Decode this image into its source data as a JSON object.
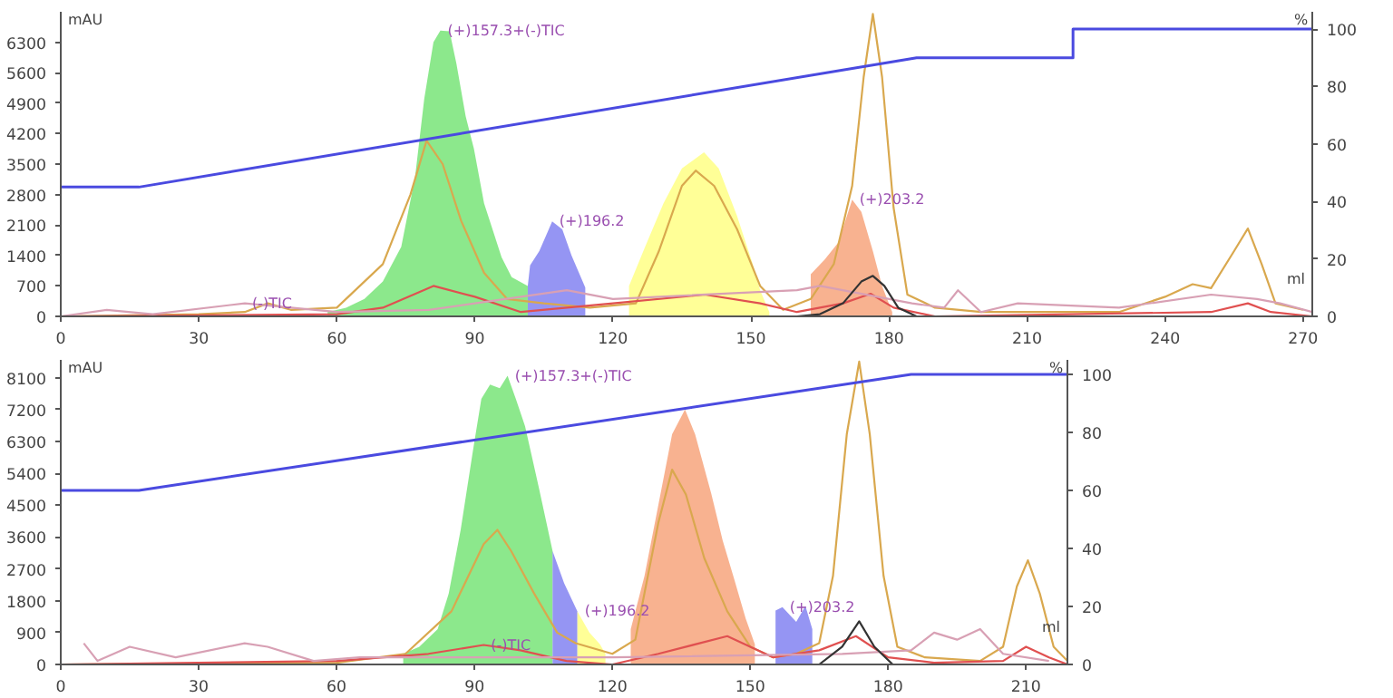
{
  "chart_data": [
    {
      "type": "line",
      "xlabel": "ml",
      "ylabel": "mAU",
      "y2label": "%",
      "xlim": [
        0,
        272
      ],
      "xticks": [
        0,
        30,
        60,
        90,
        120,
        150,
        180,
        210,
        240,
        270
      ],
      "ylim": [
        0,
        7000
      ],
      "yticks": [
        0,
        700,
        1400,
        2100,
        2800,
        3500,
        4200,
        4900,
        5600,
        6300
      ],
      "y2lim": [
        0,
        106
      ],
      "y2ticks": [
        0,
        20,
        40,
        60,
        80,
        100
      ],
      "annotations": [
        {
          "text": "(+)157.3+(-)TIC",
          "x": 82.5,
          "y": 6570
        },
        {
          "text": "(-)TIC",
          "x": 40,
          "y": 300
        },
        {
          "text": "(+)196.2",
          "x": 106.8,
          "y": 2180
        },
        {
          "text": "(+)203.2",
          "x": 172,
          "y": 2680
        }
      ],
      "series": [
        {
          "type": "area",
          "color": "#80e680",
          "x": [
            58,
            62,
            66,
            70,
            74,
            77,
            79,
            81,
            82.5,
            84.5,
            86,
            88,
            89.8,
            92,
            95.8,
            98,
            101.5
          ],
          "values": [
            100,
            200,
            400,
            800,
            1600,
            3200,
            5000,
            6300,
            6570,
            6550,
            5800,
            4600,
            3850,
            2600,
            1360,
            900,
            700
          ]
        },
        {
          "type": "area",
          "color": "#8a8af2",
          "x": [
            101.5,
            102,
            104,
            106.8,
            109,
            111,
            114
          ],
          "values": [
            700,
            1170,
            1500,
            2180,
            2000,
            1400,
            660
          ]
        },
        {
          "type": "area",
          "color": "#ffff8c",
          "x": [
            123.5,
            127,
            131,
            135,
            139.8,
            143,
            147,
            150.4,
            152,
            154
          ],
          "values": [
            700,
            1600,
            2600,
            3400,
            3770,
            3400,
            2300,
            1200,
            600,
            100
          ]
        },
        {
          "type": "area",
          "color": "#f7aa84",
          "x": [
            163,
            166,
            169,
            172,
            174,
            176.5,
            178.5,
            180.7
          ],
          "values": [
            970,
            1300,
            1700,
            2680,
            2400,
            1500,
            700,
            100
          ]
        },
        {
          "color": "#d9a84e",
          "x": [
            0,
            30,
            40,
            45,
            50,
            60,
            70,
            76,
            79.5,
            83,
            87,
            92,
            97,
            105,
            115,
            125,
            130,
            135,
            138,
            142,
            147,
            152,
            157,
            163,
            168,
            172,
            174.5,
            176.5,
            178.5,
            181,
            184,
            190,
            200,
            210,
            230,
            240,
            246,
            250,
            255,
            258,
            261,
            264,
            270
          ],
          "values": [
            0,
            50,
            100,
            300,
            150,
            200,
            1200,
            2800,
            4040,
            3500,
            2200,
            1000,
            400,
            300,
            200,
            300,
            1500,
            3000,
            3350,
            3000,
            2000,
            700,
            150,
            400,
            1200,
            3000,
            5500,
            6950,
            5500,
            2500,
            500,
            200,
            100,
            100,
            100,
            450,
            740,
            650,
            1500,
            2020,
            1200,
            300,
            150
          ]
        },
        {
          "color": "#e05050",
          "x": [
            0,
            60,
            70,
            81,
            90,
            100,
            120,
            140,
            152,
            160,
            170,
            176,
            181,
            190,
            250,
            258,
            263,
            272
          ],
          "values": [
            0,
            50,
            200,
            700,
            450,
            100,
            300,
            500,
            300,
            100,
            300,
            520,
            200,
            0,
            100,
            300,
            100,
            0
          ]
        },
        {
          "color": "#d8a0b4",
          "x": [
            0,
            10,
            20,
            40,
            60,
            80,
            110,
            120,
            160,
            165,
            185,
            192,
            195,
            200,
            208,
            230,
            250,
            260,
            265,
            272
          ],
          "values": [
            0,
            150,
            50,
            300,
            100,
            150,
            600,
            400,
            600,
            700,
            300,
            200,
            600,
            100,
            300,
            200,
            500,
            400,
            300,
            100
          ]
        },
        {
          "color": "#333333",
          "x": [
            160,
            165,
            170,
            174,
            176.5,
            179,
            182,
            186
          ],
          "values": [
            0,
            50,
            300,
            800,
            930,
            700,
            200,
            0
          ]
        },
        {
          "color": "#4a4ae0",
          "axis": "y2",
          "x": [
            0,
            17,
            186,
            220,
            220,
            272
          ],
          "values": [
            45,
            45,
            90,
            90,
            100,
            100
          ]
        }
      ]
    },
    {
      "type": "line",
      "xlabel": "ml",
      "ylabel": "mAU",
      "y2label": "%",
      "xlim": [
        0,
        219
      ],
      "xticks": [
        0,
        30,
        60,
        90,
        120,
        150,
        180,
        210
      ],
      "ylim": [
        0,
        8600
      ],
      "yticks": [
        0,
        900,
        1800,
        2700,
        3600,
        4500,
        5400,
        6300,
        7200,
        8100
      ],
      "y2lim": [
        0,
        105
      ],
      "y2ticks": [
        0,
        20,
        40,
        60,
        80,
        100
      ],
      "annotations": [
        {
          "text": "(+)157.3+(-)TIC",
          "x": 97.2,
          "y": 8150
        },
        {
          "text": "(-)TIC",
          "x": 92,
          "y": 550
        },
        {
          "text": "(+)196.2",
          "x": 112.4,
          "y": 1500
        },
        {
          "text": "(+)203.2",
          "x": 157,
          "y": 1620
        }
      ],
      "series": [
        {
          "type": "area",
          "color": "#80e680",
          "x": [
            74.5,
            78,
            82,
            84.4,
            87,
            89.7,
            91.5,
            93.4,
            95.5,
            97.2,
            99,
            101,
            104,
            107
          ],
          "values": [
            300,
            500,
            1000,
            2000,
            3800,
            6060,
            7500,
            7900,
            7800,
            8150,
            7500,
            6730,
            5000,
            3200
          ]
        },
        {
          "type": "area",
          "color": "#8a8af2",
          "x": [
            107,
            109.5,
            112.4
          ],
          "values": [
            3200,
            2300,
            1500
          ]
        },
        {
          "type": "area",
          "color": "#ffff8c",
          "x": [
            112.4,
            115,
            117.3,
            118.5
          ],
          "values": [
            1500,
            900,
            570,
            300
          ]
        },
        {
          "type": "area",
          "color": "#f7aa84",
          "x": [
            124,
            127,
            130,
            133,
            135.8,
            138,
            141.5,
            144,
            146.4,
            149,
            151
          ],
          "values": [
            1000,
            2500,
            4500,
            6500,
            7200,
            6500,
            4830,
            3500,
            2460,
            1300,
            570
          ]
        },
        {
          "type": "area",
          "color": "#8a8af2",
          "x": [
            155.5,
            157,
            160,
            162,
            163.5
          ],
          "values": [
            1520,
            1620,
            1200,
            1650,
            1000
          ]
        },
        {
          "color": "#d9a84e",
          "x": [
            0,
            60,
            75,
            85,
            92,
            95,
            98,
            103,
            108,
            112,
            120,
            125,
            130,
            133,
            136,
            140,
            145,
            150,
            155,
            160,
            165,
            168,
            171,
            173.7,
            176,
            179,
            182,
            188,
            200,
            205,
            208,
            210.4,
            213,
            216,
            219
          ],
          "values": [
            0,
            50,
            300,
            1500,
            3400,
            3800,
            3200,
            2000,
            900,
            600,
            300,
            700,
            4000,
            5500,
            4800,
            3000,
            1500,
            500,
            200,
            300,
            600,
            2500,
            6500,
            8550,
            6500,
            2500,
            500,
            200,
            100,
            500,
            2200,
            2940,
            2000,
            500,
            100
          ]
        },
        {
          "color": "#e05050",
          "x": [
            0,
            60,
            80,
            92,
            100,
            110,
            120,
            130,
            145,
            155,
            165,
            173,
            180,
            190,
            205,
            210,
            215,
            219
          ],
          "values": [
            0,
            100,
            300,
            550,
            400,
            100,
            0,
            300,
            800,
            200,
            400,
            800,
            200,
            50,
            100,
            500,
            200,
            0
          ]
        },
        {
          "color": "#d8a0b4",
          "x": [
            5,
            8,
            15,
            25,
            40,
            45,
            55,
            65,
            120,
            170,
            185,
            190,
            195,
            200,
            205,
            215
          ],
          "values": [
            600,
            100,
            500,
            200,
            600,
            500,
            100,
            200,
            200,
            300,
            400,
            900,
            700,
            1000,
            300,
            100
          ]
        },
        {
          "color": "#333333",
          "x": [
            165,
            170,
            173.7,
            177,
            181
          ],
          "values": [
            0,
            500,
            1220,
            500,
            0
          ]
        },
        {
          "color": "#4a4ae0",
          "axis": "y2",
          "x": [
            0,
            17,
            185,
            219
          ],
          "values": [
            60,
            60,
            100,
            100
          ]
        }
      ]
    }
  ]
}
